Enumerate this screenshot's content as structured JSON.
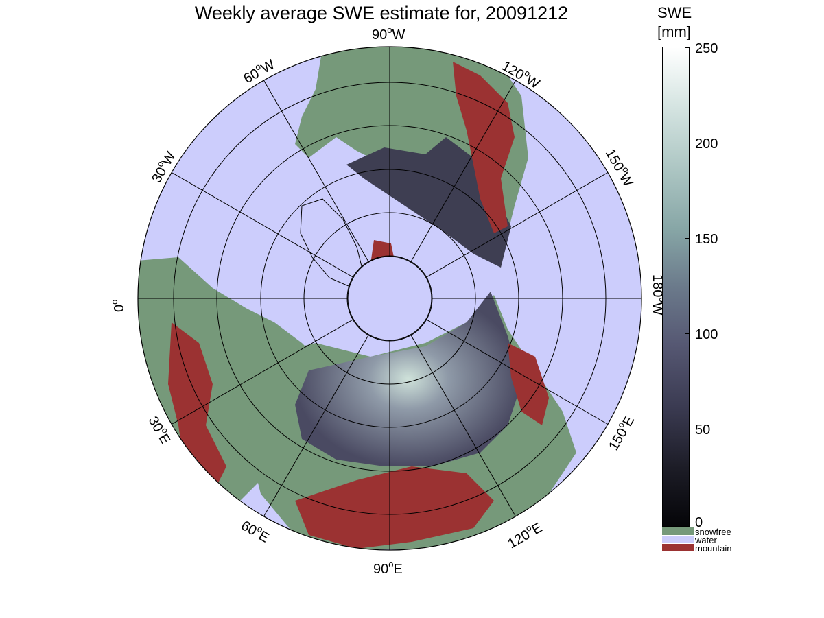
{
  "title": "Weekly average SWE estimate for, 20091212",
  "colorbar": {
    "title_line1": "SWE",
    "title_line2": "[mm]",
    "ticks": [
      "250",
      "200",
      "150",
      "100",
      "50",
      "0"
    ]
  },
  "legend": [
    {
      "label": "snowfree",
      "color": "#76997a"
    },
    {
      "label": "water",
      "color": "#cccdfc"
    },
    {
      "label": "mountain",
      "color": "#9b3232"
    }
  ],
  "longitude_labels": {
    "deg_90W": "90",
    "dir_90W": "W",
    "deg_120W": "120",
    "dir_120W": "W",
    "deg_150W": "150",
    "dir_150W": "W",
    "deg_180W": "180",
    "dir_180W": "W",
    "deg_150E": "150",
    "dir_150E": "E",
    "deg_120E": "120",
    "dir_120E": "E",
    "deg_90E": "90",
    "dir_90E": "E",
    "deg_60E": "60",
    "dir_60E": "E",
    "deg_30E": "30",
    "dir_30E": "E",
    "deg_0": "0",
    "deg_30W": "30",
    "dir_30W": "W",
    "deg_60W": "60",
    "dir_60W": "W",
    "degree_symbol": "o"
  },
  "colors": {
    "water": "#cccdfc",
    "land": "#76997a",
    "mountain": "#9b3232",
    "snow_dark": "#2a2a38",
    "snow_mid": "#505068"
  }
}
